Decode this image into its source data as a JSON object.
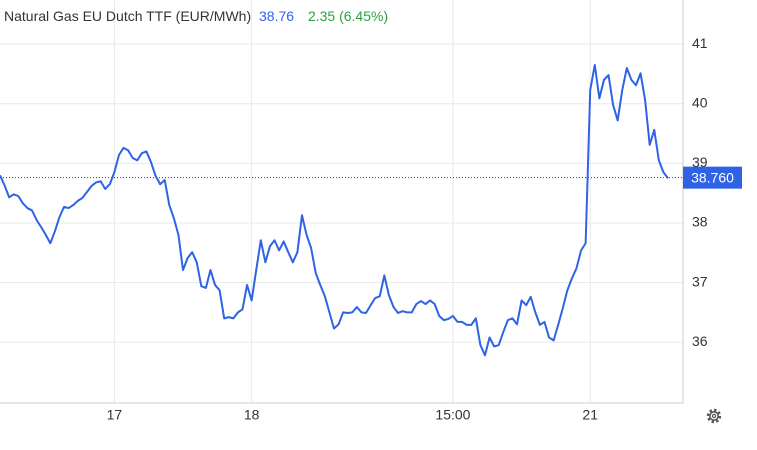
{
  "chart_data": {
    "type": "line",
    "title": "Natural Gas EU Dutch TTF (EUR/MWh)",
    "last": 38.76,
    "change": "2.35 (6.45%)",
    "color": "#2f63e6",
    "change_color": "#2ea043",
    "categories": [
      null,
      null,
      null,
      null,
      null,
      null,
      null,
      null,
      null,
      null,
      null,
      null,
      null,
      null,
      null,
      null,
      null,
      null,
      null,
      null,
      null,
      null,
      null,
      null,
      null,
      "17",
      null,
      null,
      null,
      null,
      null,
      null,
      null,
      null,
      null,
      null,
      null,
      null,
      null,
      null,
      null,
      null,
      null,
      null,
      null,
      null,
      null,
      null,
      null,
      null,
      null,
      null,
      null,
      null,
      null,
      "18",
      null,
      null,
      null,
      null,
      null,
      null,
      null,
      null,
      null,
      null,
      null,
      null,
      null,
      null,
      null,
      null,
      null,
      null,
      null,
      null,
      null,
      null,
      null,
      null,
      null,
      null,
      null,
      null,
      null,
      null,
      null,
      null,
      null,
      null,
      null,
      null,
      null,
      null,
      null,
      null,
      null,
      null,
      null,
      "15:00",
      null,
      null,
      null,
      null,
      null,
      null,
      null,
      null,
      null,
      null,
      null,
      null,
      null,
      null,
      null,
      null,
      null,
      null,
      null,
      null,
      null,
      null,
      null,
      null,
      null,
      null,
      null,
      null,
      null,
      "21",
      null,
      null,
      null,
      null,
      null,
      null,
      null,
      null,
      null,
      null,
      null,
      null,
      null,
      null,
      null,
      null,
      null
    ],
    "values": [
      38.8,
      38.63,
      38.43,
      38.48,
      38.45,
      38.33,
      38.25,
      38.21,
      38.05,
      37.93,
      37.8,
      37.66,
      37.86,
      38.1,
      38.27,
      38.25,
      38.3,
      38.37,
      38.42,
      38.52,
      38.62,
      38.68,
      38.7,
      38.57,
      38.65,
      38.85,
      39.14,
      39.26,
      39.22,
      39.09,
      39.05,
      39.17,
      39.2,
      39.02,
      38.79,
      38.65,
      38.72,
      38.3,
      38.08,
      37.8,
      37.21,
      37.41,
      37.51,
      37.34,
      36.94,
      36.91,
      37.21,
      36.96,
      36.87,
      36.4,
      36.42,
      36.4,
      36.5,
      36.55,
      36.96,
      36.7,
      37.21,
      37.71,
      37.34,
      37.61,
      37.71,
      37.54,
      37.69,
      37.51,
      37.34,
      37.51,
      38.13,
      37.8,
      37.58,
      37.16,
      36.96,
      36.77,
      36.5,
      36.23,
      36.3,
      36.5,
      36.49,
      36.5,
      36.59,
      36.5,
      36.49,
      36.62,
      36.74,
      36.77,
      37.12,
      36.79,
      36.59,
      36.49,
      36.52,
      36.5,
      36.5,
      36.64,
      36.69,
      36.64,
      36.7,
      36.64,
      36.44,
      36.37,
      36.39,
      36.44,
      36.34,
      36.34,
      36.29,
      36.29,
      36.4,
      35.95,
      35.78,
      36.08,
      35.93,
      35.95,
      36.17,
      36.37,
      36.4,
      36.3,
      36.7,
      36.62,
      36.76,
      36.5,
      36.29,
      36.34,
      36.08,
      36.03,
      36.29,
      36.57,
      36.87,
      37.07,
      37.24,
      37.54,
      37.66,
      40.23,
      40.65,
      40.09,
      40.4,
      40.48,
      39.98,
      39.72,
      40.23,
      40.6,
      40.4,
      40.31,
      40.51,
      40.06,
      39.31,
      39.56,
      39.05,
      38.85,
      38.75
    ],
    "last_price": {
      "value": 38.76,
      "label": "38.760"
    },
    "ylim": [
      34.98,
      41.74
    ],
    "yticks": [
      36,
      37,
      38,
      39,
      40,
      41
    ],
    "grid": true
  }
}
